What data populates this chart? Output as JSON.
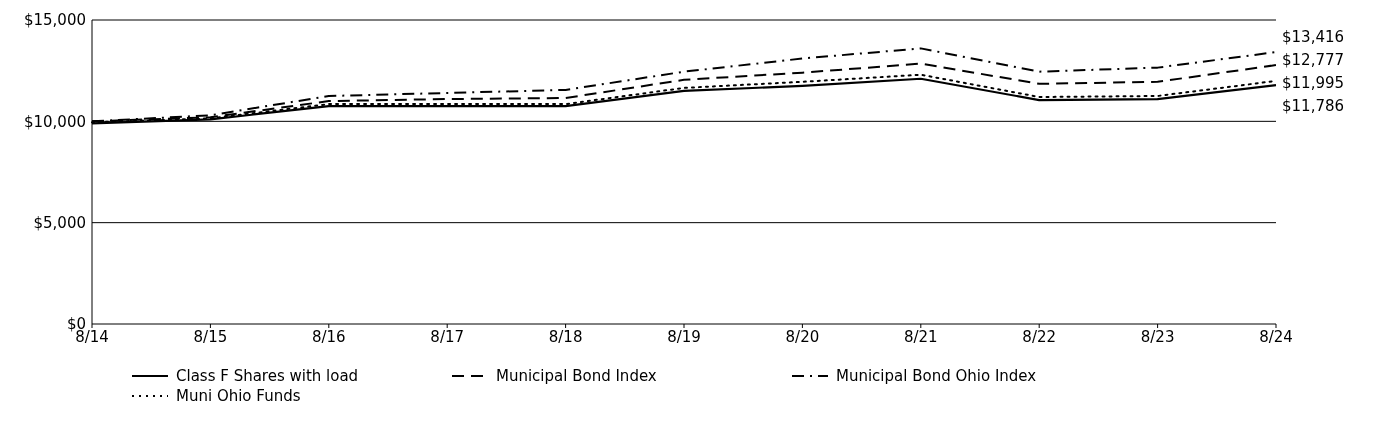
{
  "chart_data": {
    "type": "line",
    "categories": [
      "8/14",
      "8/15",
      "8/16",
      "8/17",
      "8/18",
      "8/19",
      "8/20",
      "8/21",
      "8/22",
      "8/23",
      "8/24"
    ],
    "ylim": [
      0,
      15000
    ],
    "yticks": [
      {
        "value": 0,
        "label": "$0"
      },
      {
        "value": 5000,
        "label": "$5,000"
      },
      {
        "value": 10000,
        "label": "$10,000"
      },
      {
        "value": 15000,
        "label": "$15,000"
      }
    ],
    "grid": "y",
    "legend": "bottom",
    "series": [
      {
        "name": "Class F Shares with load",
        "color": "#000000",
        "line_style": "solid",
        "values": [
          9900,
          10100,
          10750,
          10750,
          10750,
          11500,
          11750,
          12100,
          11050,
          11100,
          11786
        ],
        "value_labels": [
          null,
          null,
          null,
          null,
          null,
          null,
          null,
          null,
          null,
          null,
          "$11,786"
        ]
      },
      {
        "name": "Municipal Bond Index",
        "color": "#000000",
        "line_style": "dashed",
        "values": [
          10000,
          10200,
          11000,
          11100,
          11150,
          12050,
          12400,
          12850,
          11850,
          11950,
          12777
        ],
        "value_labels": [
          null,
          null,
          null,
          null,
          null,
          null,
          null,
          null,
          null,
          null,
          "$12,777"
        ]
      },
      {
        "name": "Municipal Bond Ohio Index",
        "color": "#000000",
        "line_style": "dashdot",
        "values": [
          10000,
          10300,
          11250,
          11400,
          11550,
          12450,
          13100,
          13600,
          12450,
          12650,
          13416
        ],
        "value_labels": [
          null,
          null,
          null,
          null,
          null,
          null,
          null,
          null,
          null,
          null,
          "$13,416"
        ]
      },
      {
        "name": "Muni Ohio Funds",
        "color": "#000000",
        "line_style": "dotted",
        "values": [
          9950,
          10150,
          10850,
          10850,
          10850,
          11650,
          11950,
          12300,
          11200,
          11250,
          11995
        ],
        "value_labels": [
          null,
          null,
          null,
          null,
          null,
          null,
          null,
          null,
          null,
          null,
          "$11,995"
        ]
      }
    ]
  }
}
